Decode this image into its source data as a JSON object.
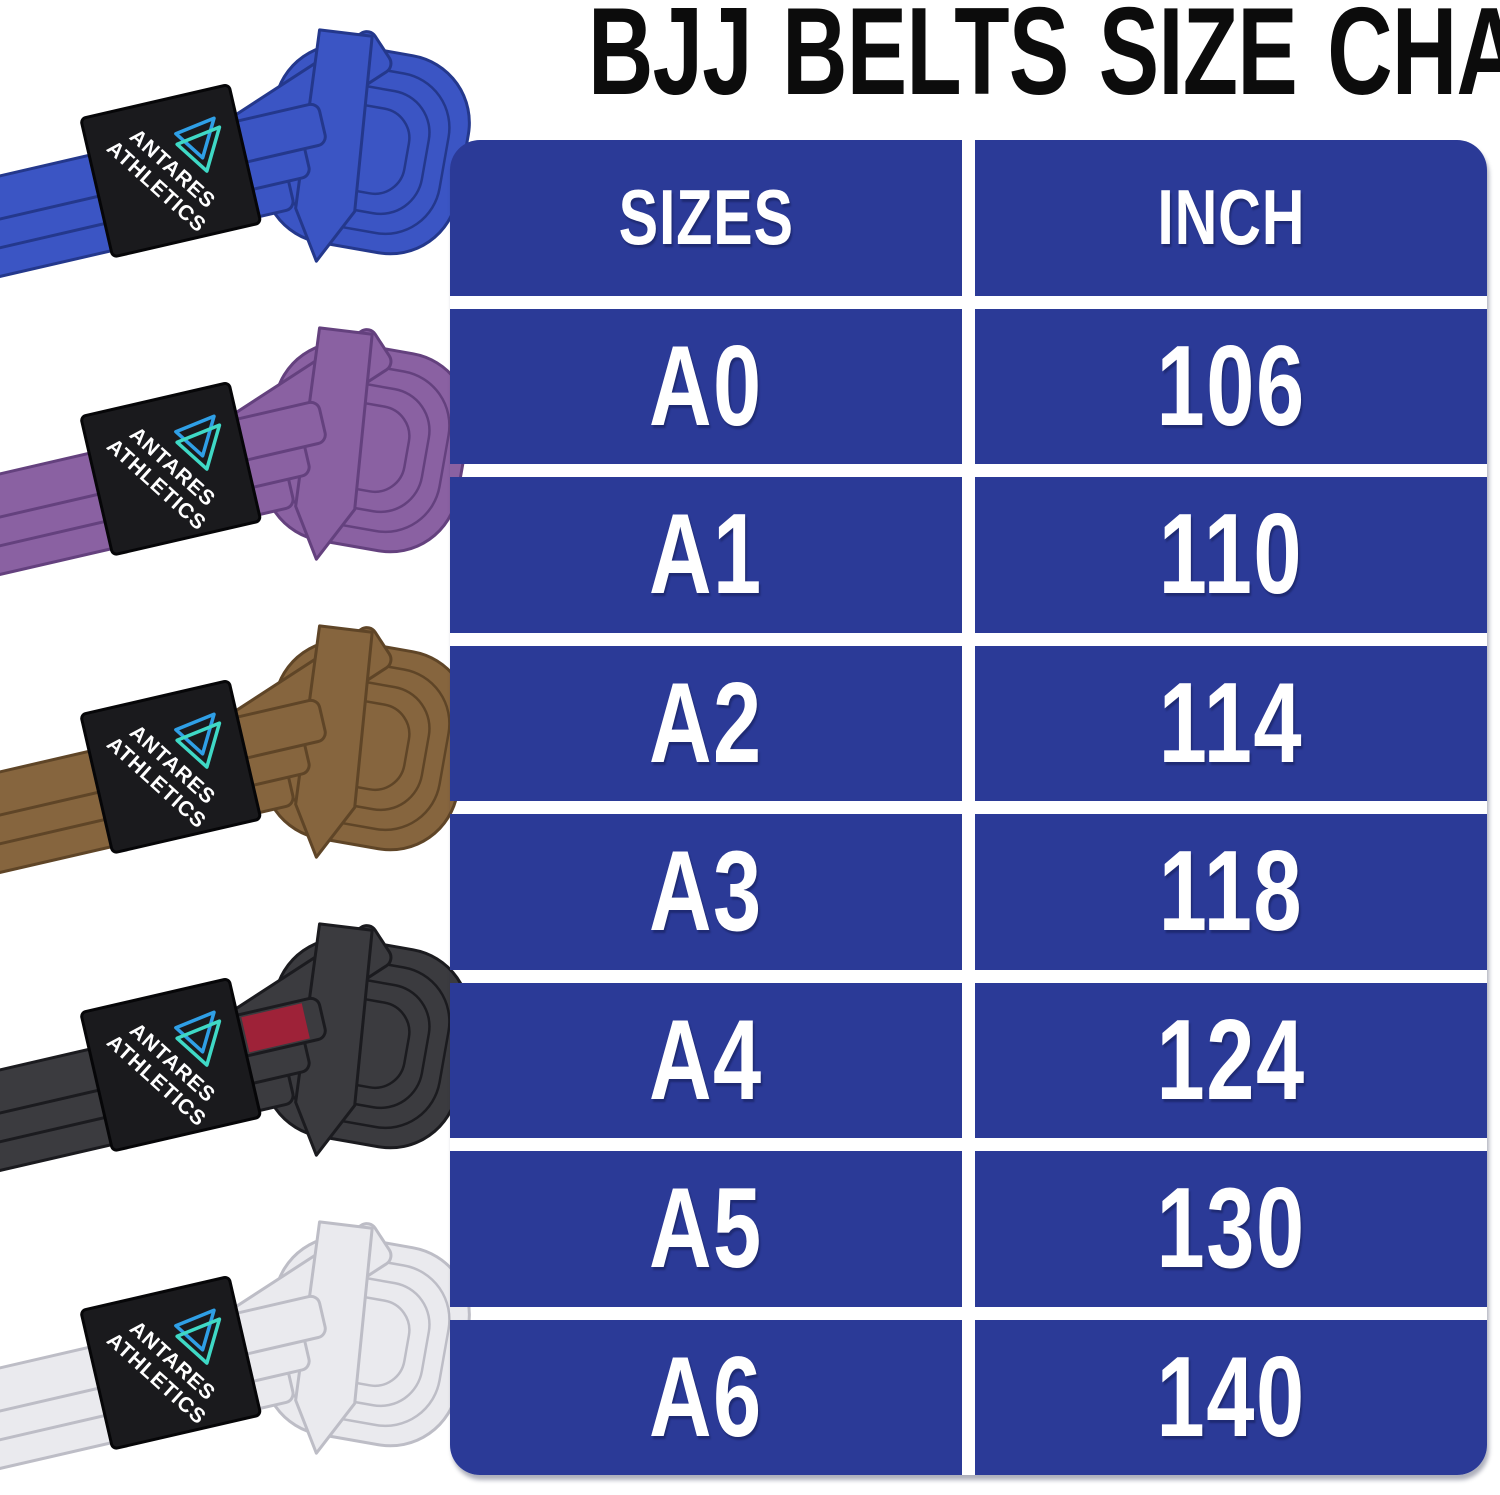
{
  "title": "BJJ BELTS SIZE CHART",
  "chart_data": {
    "type": "table",
    "title": "BJJ BELTS SIZE CHART",
    "columns": [
      "SIZES",
      "INCH"
    ],
    "rows": [
      [
        "A0",
        "106"
      ],
      [
        "A1",
        "110"
      ],
      [
        "A2",
        "114"
      ],
      [
        "A3",
        "118"
      ],
      [
        "A4",
        "124"
      ],
      [
        "A5",
        "130"
      ],
      [
        "A6",
        "140"
      ]
    ],
    "units": "inches",
    "layout": "two-column blue table, white gridline gaps, rounded outer corners"
  },
  "belt_label": {
    "brand_line1": "ANTARES",
    "brand_line2": "ATHLETICS"
  },
  "belts": [
    {
      "name": "blue",
      "color": "#3b55c4",
      "dark": "#24388c"
    },
    {
      "name": "purple",
      "color": "#8a61a2",
      "dark": "#64417e"
    },
    {
      "name": "brown",
      "color": "#86653e",
      "dark": "#5f4527"
    },
    {
      "name": "black",
      "color": "#3b3b3f",
      "dark": "#1b1b1f",
      "stripe": "#9e2238"
    },
    {
      "name": "white",
      "color": "#eaeaee",
      "dark": "#bdbdc6"
    }
  ],
  "colors": {
    "table_blue": "#2b3a97",
    "gap_white": "#ffffff",
    "title_color": "#0c0c0c",
    "cell_text": "#ffffff",
    "label_bg": "#1a1a1d",
    "label_border": "#060608",
    "label_text": "#ffffff",
    "logo_teal": "#3fd9c6",
    "logo_blue": "#2f9fe6"
  }
}
